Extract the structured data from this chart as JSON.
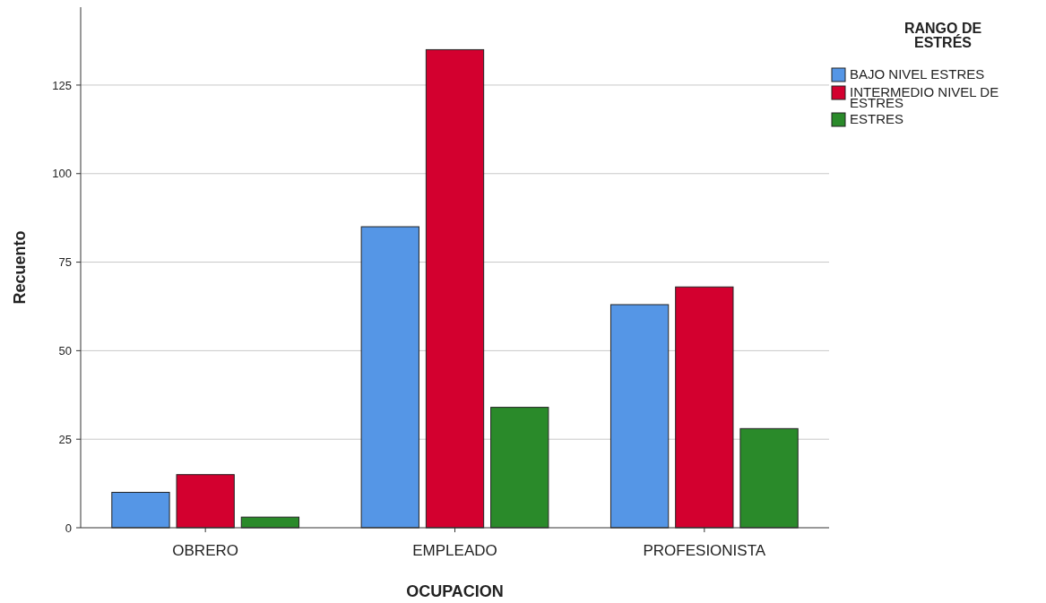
{
  "chart_data": {
    "type": "bar",
    "xlabel": "OCUPACION",
    "ylabel": "Recuento",
    "legend_title": "RANGO DE ESTRÉS",
    "categories": [
      "OBRERO",
      "EMPLEADO",
      "PROFESIONISTA"
    ],
    "series": [
      {
        "name": "BAJO NIVEL ESTRES",
        "color": "#5596e6",
        "values": [
          10,
          85,
          63
        ]
      },
      {
        "name": "INTERMEDIO NIVEL DE ESTRES",
        "color": "#d3002f",
        "values": [
          15,
          135,
          68
        ]
      },
      {
        "name": "ESTRES",
        "color": "#2a8a2a",
        "values": [
          3,
          34,
          28
        ]
      }
    ],
    "ylim": [
      0,
      147
    ],
    "yticks": [
      0,
      25,
      50,
      75,
      100,
      125
    ],
    "grid": "y",
    "legend": "right"
  }
}
